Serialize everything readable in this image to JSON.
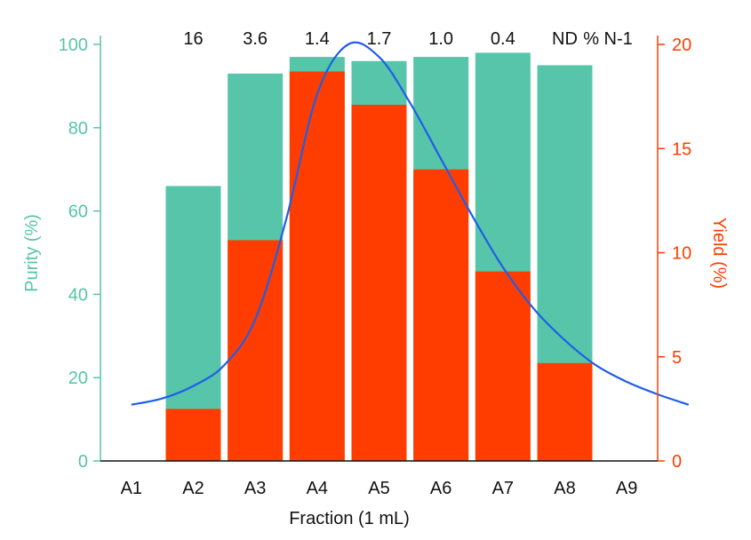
{
  "chart_data": {
    "type": "bar",
    "categories": [
      "A1",
      "A2",
      "A3",
      "A4",
      "A5",
      "A6",
      "A7",
      "A8",
      "A9"
    ],
    "xlabel": "Fraction (1 mL)",
    "ylabel_left": "Purity (%)",
    "ylabel_right": "Yield (%)",
    "ylim_left": [
      0,
      100
    ],
    "ylim_right": [
      0,
      20
    ],
    "yticks_left": [
      0,
      20,
      40,
      60,
      80,
      100
    ],
    "yticks_right": [
      0,
      5,
      10,
      15,
      20
    ],
    "grid": false,
    "top_annotation_header": "% N-1",
    "top_annotations": [
      "",
      "16",
      "3.6",
      "1.4",
      "1.7",
      "1.0",
      "0.4",
      "ND",
      ""
    ],
    "series": [
      {
        "name": "Purity (%)",
        "axis": "left",
        "kind": "bar",
        "values": [
          null,
          66,
          93,
          97,
          96,
          97,
          98,
          95,
          null
        ]
      },
      {
        "name": "Yield (%)",
        "axis": "right",
        "kind": "bar",
        "values": [
          null,
          2.5,
          10.6,
          18.7,
          17.1,
          14.0,
          9.1,
          4.7,
          null
        ]
      },
      {
        "name": "Yield curve",
        "axis": "right",
        "kind": "line",
        "x": [
          0.5,
          1.0,
          1.5,
          2.0,
          2.5,
          3.0,
          3.5,
          4.0,
          4.5,
          5.0,
          5.5,
          6.0,
          6.5,
          7.0,
          7.5,
          8.0,
          8.5,
          9.0,
          9.5
        ],
        "values": [
          2.7,
          3.0,
          3.6,
          4.6,
          6.8,
          11.6,
          17.6,
          20.0,
          19.4,
          17.2,
          14.5,
          11.8,
          9.3,
          7.3,
          5.8,
          4.6,
          3.8,
          3.2,
          2.7
        ]
      }
    ],
    "colors": {
      "purity_bar": "#57c5a9",
      "yield_bar": "#ff3d00",
      "curve": "#1f5ee8",
      "left_axis": "#57c5a9",
      "right_axis": "#ff3d00",
      "text": "#111111"
    }
  }
}
